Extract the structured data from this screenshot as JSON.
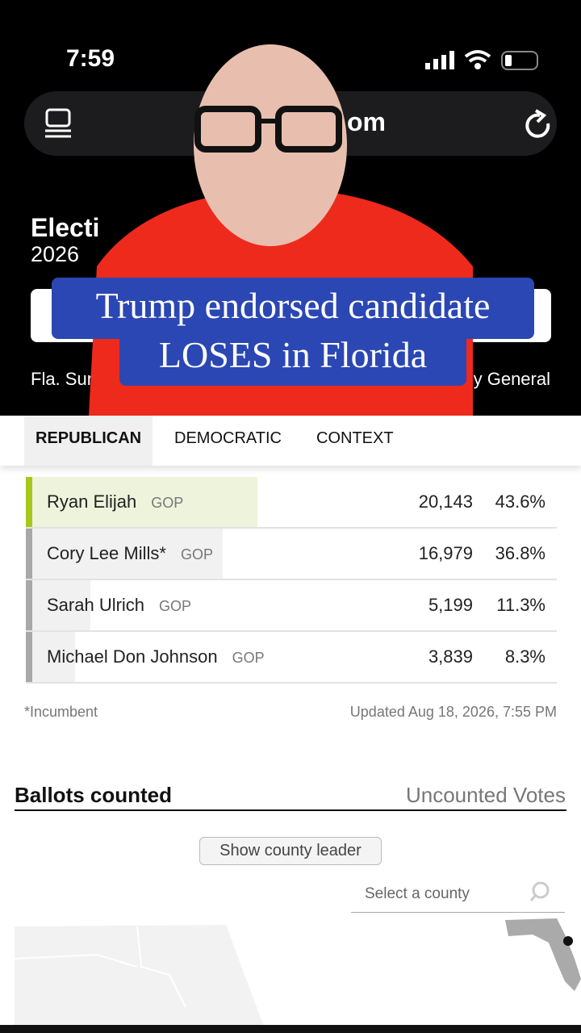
{
  "status_bar": {
    "time": "7:59"
  },
  "browser": {
    "url_fragment": "om"
  },
  "page_header": {
    "title_fragment": "Electi",
    "year": "2026",
    "nav_left": "Fla. Sun",
    "nav_right": "ey General"
  },
  "caption": {
    "line1": "Trump endorsed candidate",
    "line2": "LOSES in Florida"
  },
  "tabs": [
    "REPUBLICAN",
    "DEMOCRATIC",
    "CONTEXT"
  ],
  "results": {
    "rows": [
      {
        "name": "Ryan Elijah",
        "party": "GOP",
        "votes": "20,143",
        "pct": 43.6,
        "pct_label": "43.6%",
        "leader": true
      },
      {
        "name": "Cory Lee Mills*",
        "party": "GOP",
        "votes": "16,979",
        "pct": 36.8,
        "pct_label": "36.8%",
        "leader": false
      },
      {
        "name": "Sarah Ulrich",
        "party": "GOP",
        "votes": "5,199",
        "pct": 11.3,
        "pct_label": "11.3%",
        "leader": false
      },
      {
        "name": "Michael Don Johnson",
        "party": "GOP",
        "votes": "3,839",
        "pct": 8.3,
        "pct_label": "8.3%",
        "leader": false
      }
    ],
    "footnote": "*Incumbent",
    "updated": "Updated Aug 18, 2026, 7:55 PM"
  },
  "ballots": {
    "title": "Ballots counted",
    "tab": "Uncounted Votes",
    "button": "Show county leader",
    "search_placeholder": "Select a county"
  }
}
